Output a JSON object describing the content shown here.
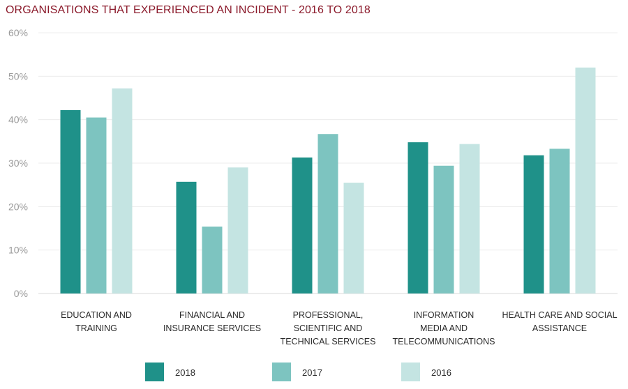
{
  "chart_data": {
    "type": "bar",
    "title": "ORGANISATIONS THAT EXPERIENCED AN INCIDENT - 2016 TO 2018",
    "xlabel": "",
    "ylabel": "",
    "ylim": [
      0,
      60
    ],
    "yticks": [
      "0%",
      "10%",
      "20%",
      "30%",
      "40%",
      "50%",
      "60%"
    ],
    "grid": true,
    "legend_position": "bottom",
    "categories": [
      [
        "EDUCATION AND",
        "TRAINING"
      ],
      [
        "FINANCIAL AND",
        "INSURANCE SERVICES"
      ],
      [
        "PROFESSIONAL,",
        "SCIENTIFIC AND",
        "TECHNICAL SERVICES"
      ],
      [
        "INFORMATION",
        "MEDIA AND",
        "TELECOMMUNICATIONS"
      ],
      [
        "HEALTH CARE AND SOCIAL",
        "ASSISTANCE"
      ]
    ],
    "series": [
      {
        "name": "2018",
        "color": "#1f9189",
        "values": [
          42.2,
          25.7,
          31.3,
          34.8,
          31.8
        ]
      },
      {
        "name": "2017",
        "color": "#7dc4c0",
        "values": [
          40.5,
          15.4,
          36.7,
          29.4,
          33.3
        ]
      },
      {
        "name": "2016",
        "color": "#c4e4e2",
        "values": [
          47.2,
          29.0,
          25.5,
          34.4,
          52.0
        ]
      }
    ]
  }
}
